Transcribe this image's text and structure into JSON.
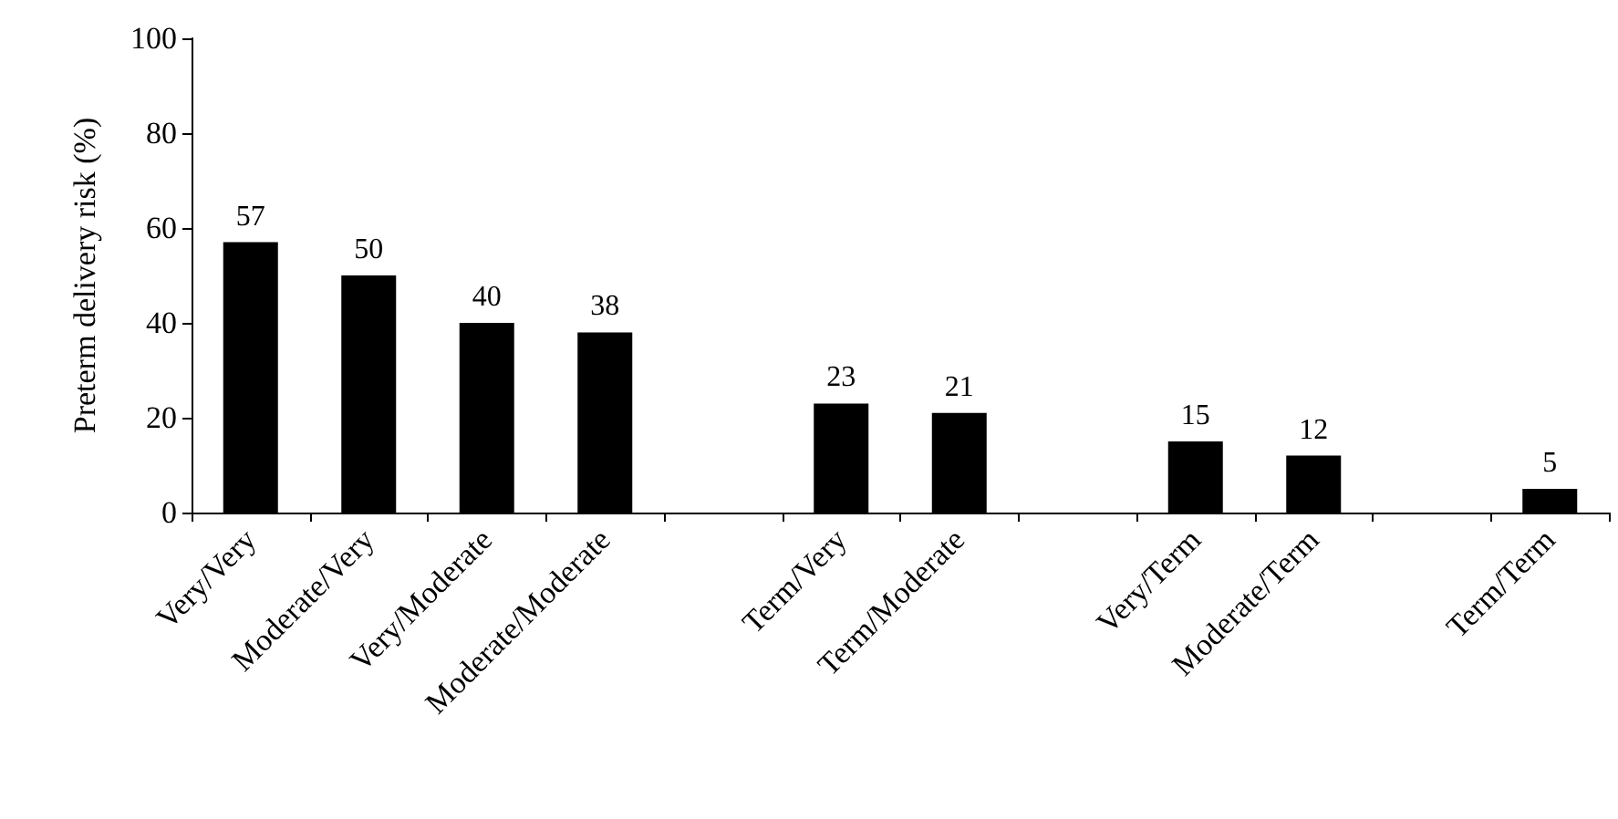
{
  "chart_data": {
    "type": "bar",
    "ylabel": "Preterm delivery risk (%)",
    "categories": [
      "Very/Very",
      "Moderate/Very",
      "Very/Moderate",
      "Moderate/Moderate",
      null,
      "Term/Very",
      "Term/Moderate",
      null,
      "Very/Term",
      "Moderate/Term",
      null,
      "Term/Term"
    ],
    "values": [
      57,
      50,
      40,
      38,
      null,
      23,
      21,
      null,
      15,
      12,
      null,
      5
    ],
    "color": "#000000",
    "ylim": [
      0,
      100
    ],
    "yticks": [
      0,
      20,
      40,
      60,
      80,
      100
    ],
    "grid": false,
    "data_labels": true
  }
}
